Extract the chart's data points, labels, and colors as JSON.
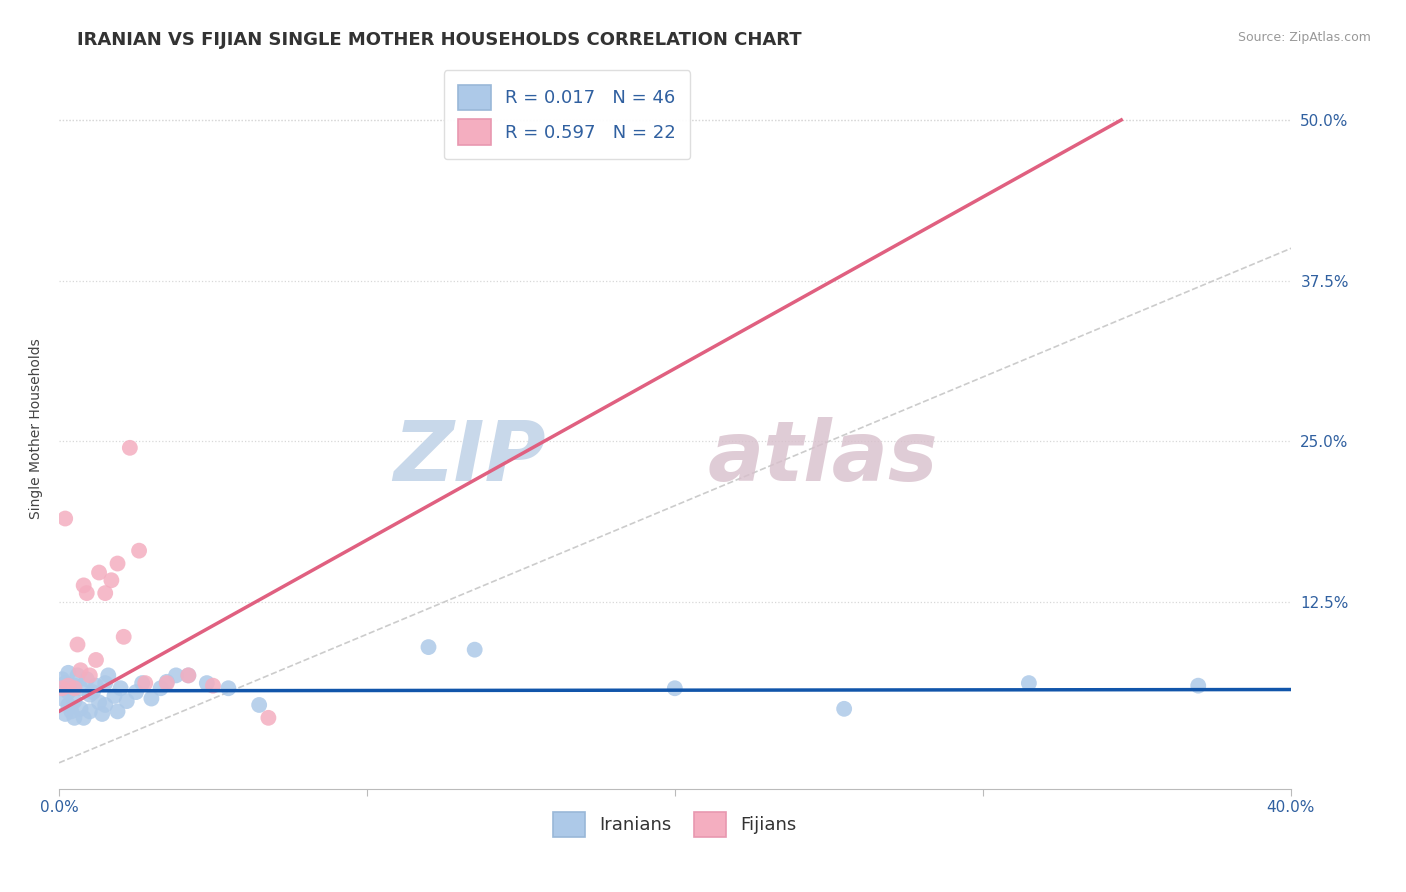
{
  "title": "IRANIAN VS FIJIAN SINGLE MOTHER HOUSEHOLDS CORRELATION CHART",
  "source_text": "Source: ZipAtlas.com",
  "ylabel": "Single Mother Households",
  "xlim": [
    0.0,
    0.4
  ],
  "ylim": [
    -0.02,
    0.54
  ],
  "yticks": [
    0.0,
    0.125,
    0.25,
    0.375,
    0.5
  ],
  "ytick_labels": [
    "",
    "12.5%",
    "25.0%",
    "37.5%",
    "50.0%"
  ],
  "xticks": [
    0.0,
    0.1,
    0.2,
    0.3,
    0.4
  ],
  "xtick_labels": [
    "0.0%",
    "",
    "",
    "",
    "40.0%"
  ],
  "iranian_R": 0.017,
  "iranian_N": 46,
  "fijian_R": 0.597,
  "fijian_N": 22,
  "iranian_color": "#adc9e8",
  "fijian_color": "#f4aec0",
  "iranian_line_color": "#1155aa",
  "fijian_line_color": "#e06080",
  "diagonal_color": "#cccccc",
  "grid_color": "#d8d8d8",
  "title_fontsize": 13,
  "axis_label_fontsize": 10,
  "tick_fontsize": 11,
  "legend_fontsize": 12,
  "watermark_zip_color": "#c8d8ea",
  "watermark_atlas_color": "#d8c0cc",
  "iranians_x": [
    0.001,
    0.001,
    0.002,
    0.002,
    0.003,
    0.003,
    0.003,
    0.004,
    0.004,
    0.005,
    0.005,
    0.005,
    0.006,
    0.007,
    0.007,
    0.008,
    0.009,
    0.01,
    0.01,
    0.011,
    0.012,
    0.013,
    0.014,
    0.015,
    0.015,
    0.016,
    0.018,
    0.019,
    0.02,
    0.022,
    0.025,
    0.027,
    0.03,
    0.033,
    0.035,
    0.038,
    0.042,
    0.048,
    0.055,
    0.065,
    0.12,
    0.135,
    0.2,
    0.255,
    0.315,
    0.37
  ],
  "iranians_y": [
    0.05,
    0.065,
    0.038,
    0.062,
    0.045,
    0.055,
    0.07,
    0.04,
    0.058,
    0.035,
    0.06,
    0.048,
    0.068,
    0.042,
    0.058,
    0.035,
    0.065,
    0.053,
    0.04,
    0.055,
    0.06,
    0.047,
    0.038,
    0.062,
    0.045,
    0.068,
    0.052,
    0.04,
    0.058,
    0.048,
    0.055,
    0.062,
    0.05,
    0.058,
    0.063,
    0.068,
    0.068,
    0.062,
    0.058,
    0.045,
    0.09,
    0.088,
    0.058,
    0.042,
    0.062,
    0.06
  ],
  "fijians_x": [
    0.001,
    0.002,
    0.003,
    0.005,
    0.006,
    0.007,
    0.008,
    0.009,
    0.01,
    0.012,
    0.013,
    0.015,
    0.017,
    0.019,
    0.021,
    0.023,
    0.026,
    0.028,
    0.035,
    0.042,
    0.05,
    0.068
  ],
  "fijians_y": [
    0.058,
    0.19,
    0.06,
    0.058,
    0.092,
    0.072,
    0.138,
    0.132,
    0.068,
    0.08,
    0.148,
    0.132,
    0.142,
    0.155,
    0.098,
    0.245,
    0.165,
    0.062,
    0.062,
    0.068,
    0.06,
    0.035
  ],
  "iran_trend_x": [
    0.0,
    0.4
  ],
  "iran_trend_y": [
    0.056,
    0.057
  ],
  "fiji_trend_x": [
    0.0,
    0.345
  ],
  "fiji_trend_y": [
    0.04,
    0.5
  ]
}
